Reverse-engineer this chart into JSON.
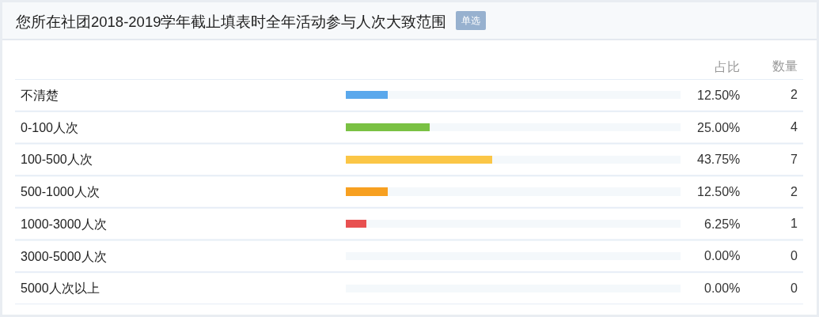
{
  "chart_data": [
    {
      "type": "bar",
      "orientation": "horizontal",
      "stacked": true,
      "title": "您所在社团2018-2019学年截止填表时全年活动参与人次大致范围",
      "subtitle": "单选",
      "categories": [
        "不清楚",
        "0-100人次",
        "100-500人次",
        "500-1000人次",
        "1000-3000人次",
        "3000-5000人次",
        "5000人次以上"
      ],
      "xlim": [
        0,
        100
      ],
      "tick_labels": "y",
      "series": [
        {
          "name": "占比",
          "type": "bar",
          "colors": [
            "#5aa8ec",
            "#7ac143",
            "#fbc646",
            "#f7a021",
            "#e85050",
            "#5aa8ec",
            "#7ac143"
          ],
          "values": [
            12.5,
            25,
            43.75,
            12.5,
            6.25,
            0,
            0
          ],
          "value_labels": [
            "12.50%",
            "25.00%",
            "43.75%",
            "12.50%",
            "6.25%",
            "0.00%",
            "0.00%"
          ]
        },
        {
          "type": "bar",
          "color": "#f4f8fb",
          "values": [
            87.5,
            75,
            56.25,
            87.5,
            93.75,
            100,
            100
          ]
        }
      ]
    },
    {
      "type": "other",
      "title": "数量",
      "values": [
        2,
        4,
        7,
        2,
        1,
        0,
        0
      ],
      "data_labels": true
    }
  ]
}
